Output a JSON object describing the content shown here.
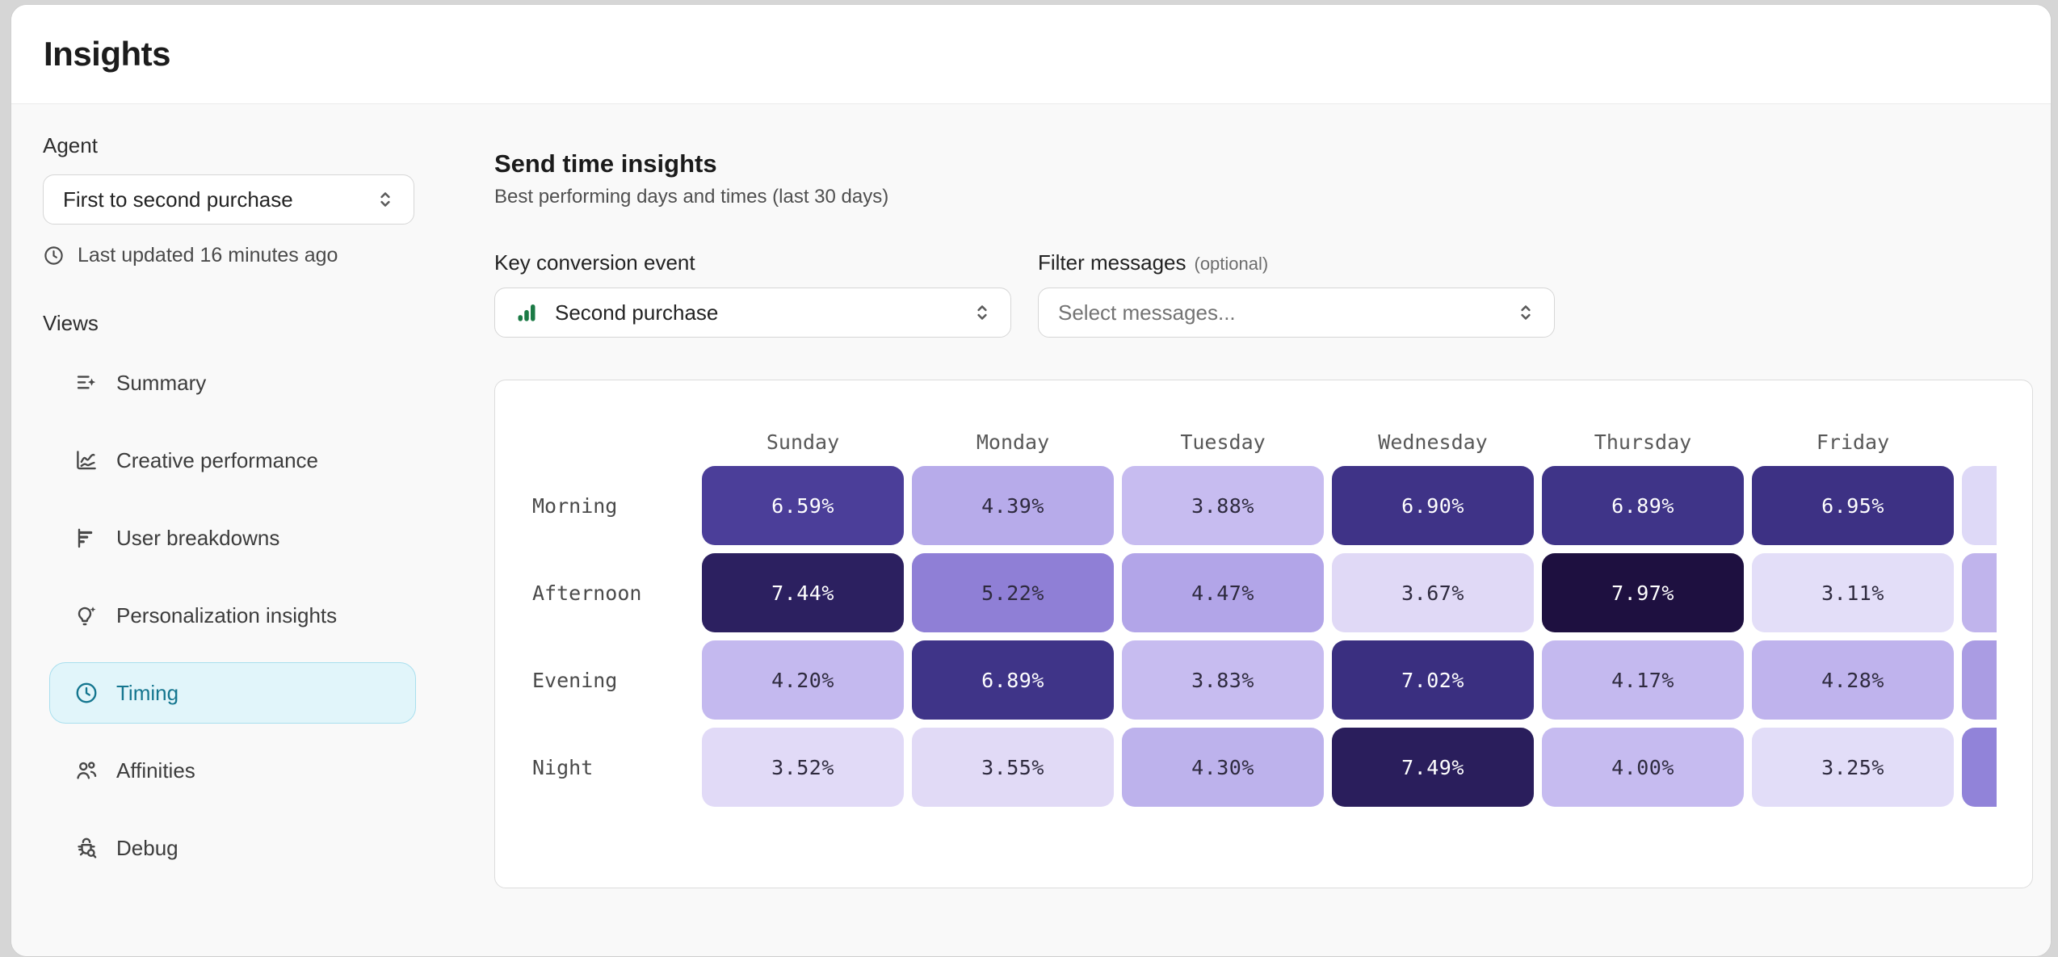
{
  "header": {
    "title": "Insights"
  },
  "sidebar": {
    "agent_label": "Agent",
    "agent_select": {
      "value": "First to second purchase"
    },
    "last_updated": "Last updated 16 minutes ago",
    "views_label": "Views",
    "items": [
      {
        "label": "Summary",
        "icon": "summary-icon",
        "active": false
      },
      {
        "label": "Creative performance",
        "icon": "line-chart-icon",
        "active": false
      },
      {
        "label": "User breakdowns",
        "icon": "bars-horizontal-icon",
        "active": false
      },
      {
        "label": "Personalization insights",
        "icon": "lightbulb-sparkle-icon",
        "active": false
      },
      {
        "label": "Timing",
        "icon": "clock-icon",
        "active": true
      },
      {
        "label": "Affinities",
        "icon": "users-icon",
        "active": false
      },
      {
        "label": "Debug",
        "icon": "bug-search-icon",
        "active": false
      }
    ]
  },
  "main": {
    "section_title": "Send time insights",
    "section_subtitle": "Best performing days and times (last 30 days)",
    "key_event_label": "Key conversion event",
    "key_event_select": {
      "value": "Second purchase",
      "icon": "green-bars-icon"
    },
    "filter_label": "Filter messages",
    "filter_label_suffix": "(optional)",
    "filter_select": {
      "placeholder": "Select messages..."
    }
  },
  "colors": {
    "accent_teal": "#14768f",
    "timing_active_bg": "#e1f5fa",
    "timing_active_border": "#a9dfee",
    "event_icon_green": "#1b7a45",
    "cell_text_dark": "#2e2a3e",
    "cell_text_light": "#ffffff"
  },
  "chart_data": {
    "type": "heatmap",
    "title": "Send time insights",
    "subtitle": "Best performing days and times (last 30 days)",
    "x_categories": [
      "Sunday",
      "Monday",
      "Tuesday",
      "Wednesday",
      "Thursday",
      "Friday"
    ],
    "y_categories": [
      "Morning",
      "Afternoon",
      "Evening",
      "Night"
    ],
    "unit": "%",
    "values_percent": [
      [
        6.59,
        4.39,
        3.88,
        6.9,
        6.89,
        6.95
      ],
      [
        7.44,
        5.22,
        4.47,
        3.67,
        7.97,
        3.11
      ],
      [
        4.2,
        6.89,
        3.83,
        7.02,
        4.17,
        4.28
      ],
      [
        3.52,
        3.55,
        4.3,
        7.49,
        4.0,
        3.25
      ]
    ],
    "value_range": [
      3.11,
      7.97
    ],
    "white_text_threshold": 6.0,
    "color_scale": {
      "anchors": [
        [
          3.11,
          "#e3def8"
        ],
        [
          3.67,
          "#e0d9f6"
        ],
        [
          3.83,
          "#c7bcf0"
        ],
        [
          4.2,
          "#c4b9ef"
        ],
        [
          4.47,
          "#b2a5e8"
        ],
        [
          5.22,
          "#8f7fd6"
        ],
        [
          6.59,
          "#4b3e99"
        ],
        [
          7.02,
          "#3a2f80"
        ],
        [
          7.49,
          "#2a1e5c"
        ],
        [
          7.97,
          "#1e1040"
        ]
      ]
    },
    "partial_column_colors": [
      "#ded9f7",
      "#c0b4ec",
      "#aa9ce3",
      "#9183d9"
    ]
  }
}
